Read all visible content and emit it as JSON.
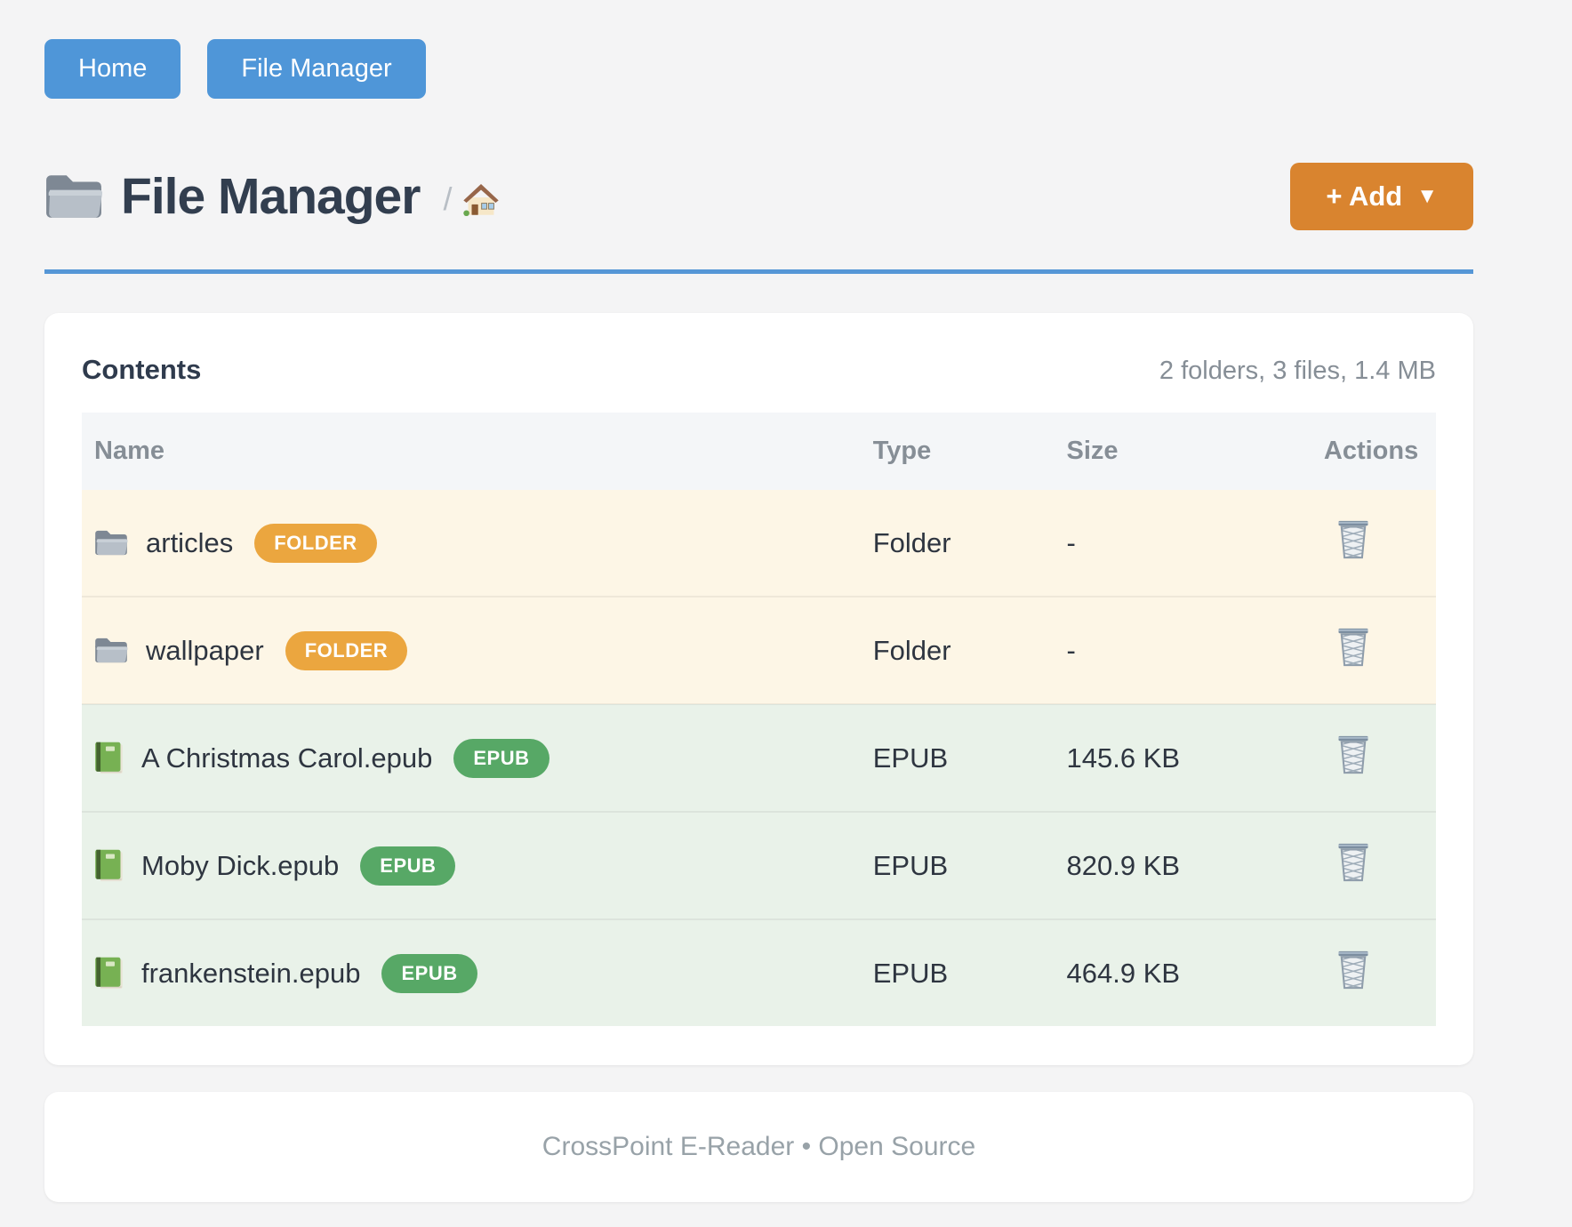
{
  "nav": {
    "home_label": "Home",
    "file_manager_label": "File Manager"
  },
  "header": {
    "title": "File Manager",
    "title_icon": "folder-icon",
    "breadcrumb_separator": "/",
    "breadcrumb_home_icon": "house-icon",
    "add_button_label": "+ Add",
    "add_button_caret": "▼"
  },
  "contents": {
    "heading": "Contents",
    "summary": "2 folders, 3 files, 1.4 MB",
    "columns": [
      "Name",
      "Type",
      "Size",
      "Actions"
    ],
    "rows": [
      {
        "name": "articles",
        "icon": "folder-icon",
        "badge": "FOLDER",
        "badge_color": "orange",
        "type": "Folder",
        "size": "-",
        "kind": "folder",
        "action_icon": "trash-icon"
      },
      {
        "name": "wallpaper",
        "icon": "folder-icon",
        "badge": "FOLDER",
        "badge_color": "orange",
        "type": "Folder",
        "size": "-",
        "kind": "folder",
        "action_icon": "trash-icon"
      },
      {
        "name": "A Christmas Carol.epub",
        "icon": "book-icon",
        "badge": "EPUB",
        "badge_color": "green",
        "type": "EPUB",
        "size": "145.6 KB",
        "kind": "file",
        "action_icon": "trash-icon"
      },
      {
        "name": "Moby Dick.epub",
        "icon": "book-icon",
        "badge": "EPUB",
        "badge_color": "green",
        "type": "EPUB",
        "size": "820.9 KB",
        "kind": "file",
        "action_icon": "trash-icon"
      },
      {
        "name": "frankenstein.epub",
        "icon": "book-icon",
        "badge": "EPUB",
        "badge_color": "green",
        "type": "EPUB",
        "size": "464.9 KB",
        "kind": "file",
        "action_icon": "trash-icon"
      }
    ]
  },
  "footer": {
    "text": "CrossPoint E-Reader • Open Source"
  },
  "colors": {
    "nav_button": "#4f96d8",
    "accent_rule": "#5596d6",
    "add_button": "#d9842f",
    "folder_badge": "#eba63f",
    "epub_badge": "#57a866",
    "folder_row_bg": "#fdf6e6",
    "file_row_bg": "#e9f2e9",
    "page_bg": "#f4f4f5"
  }
}
